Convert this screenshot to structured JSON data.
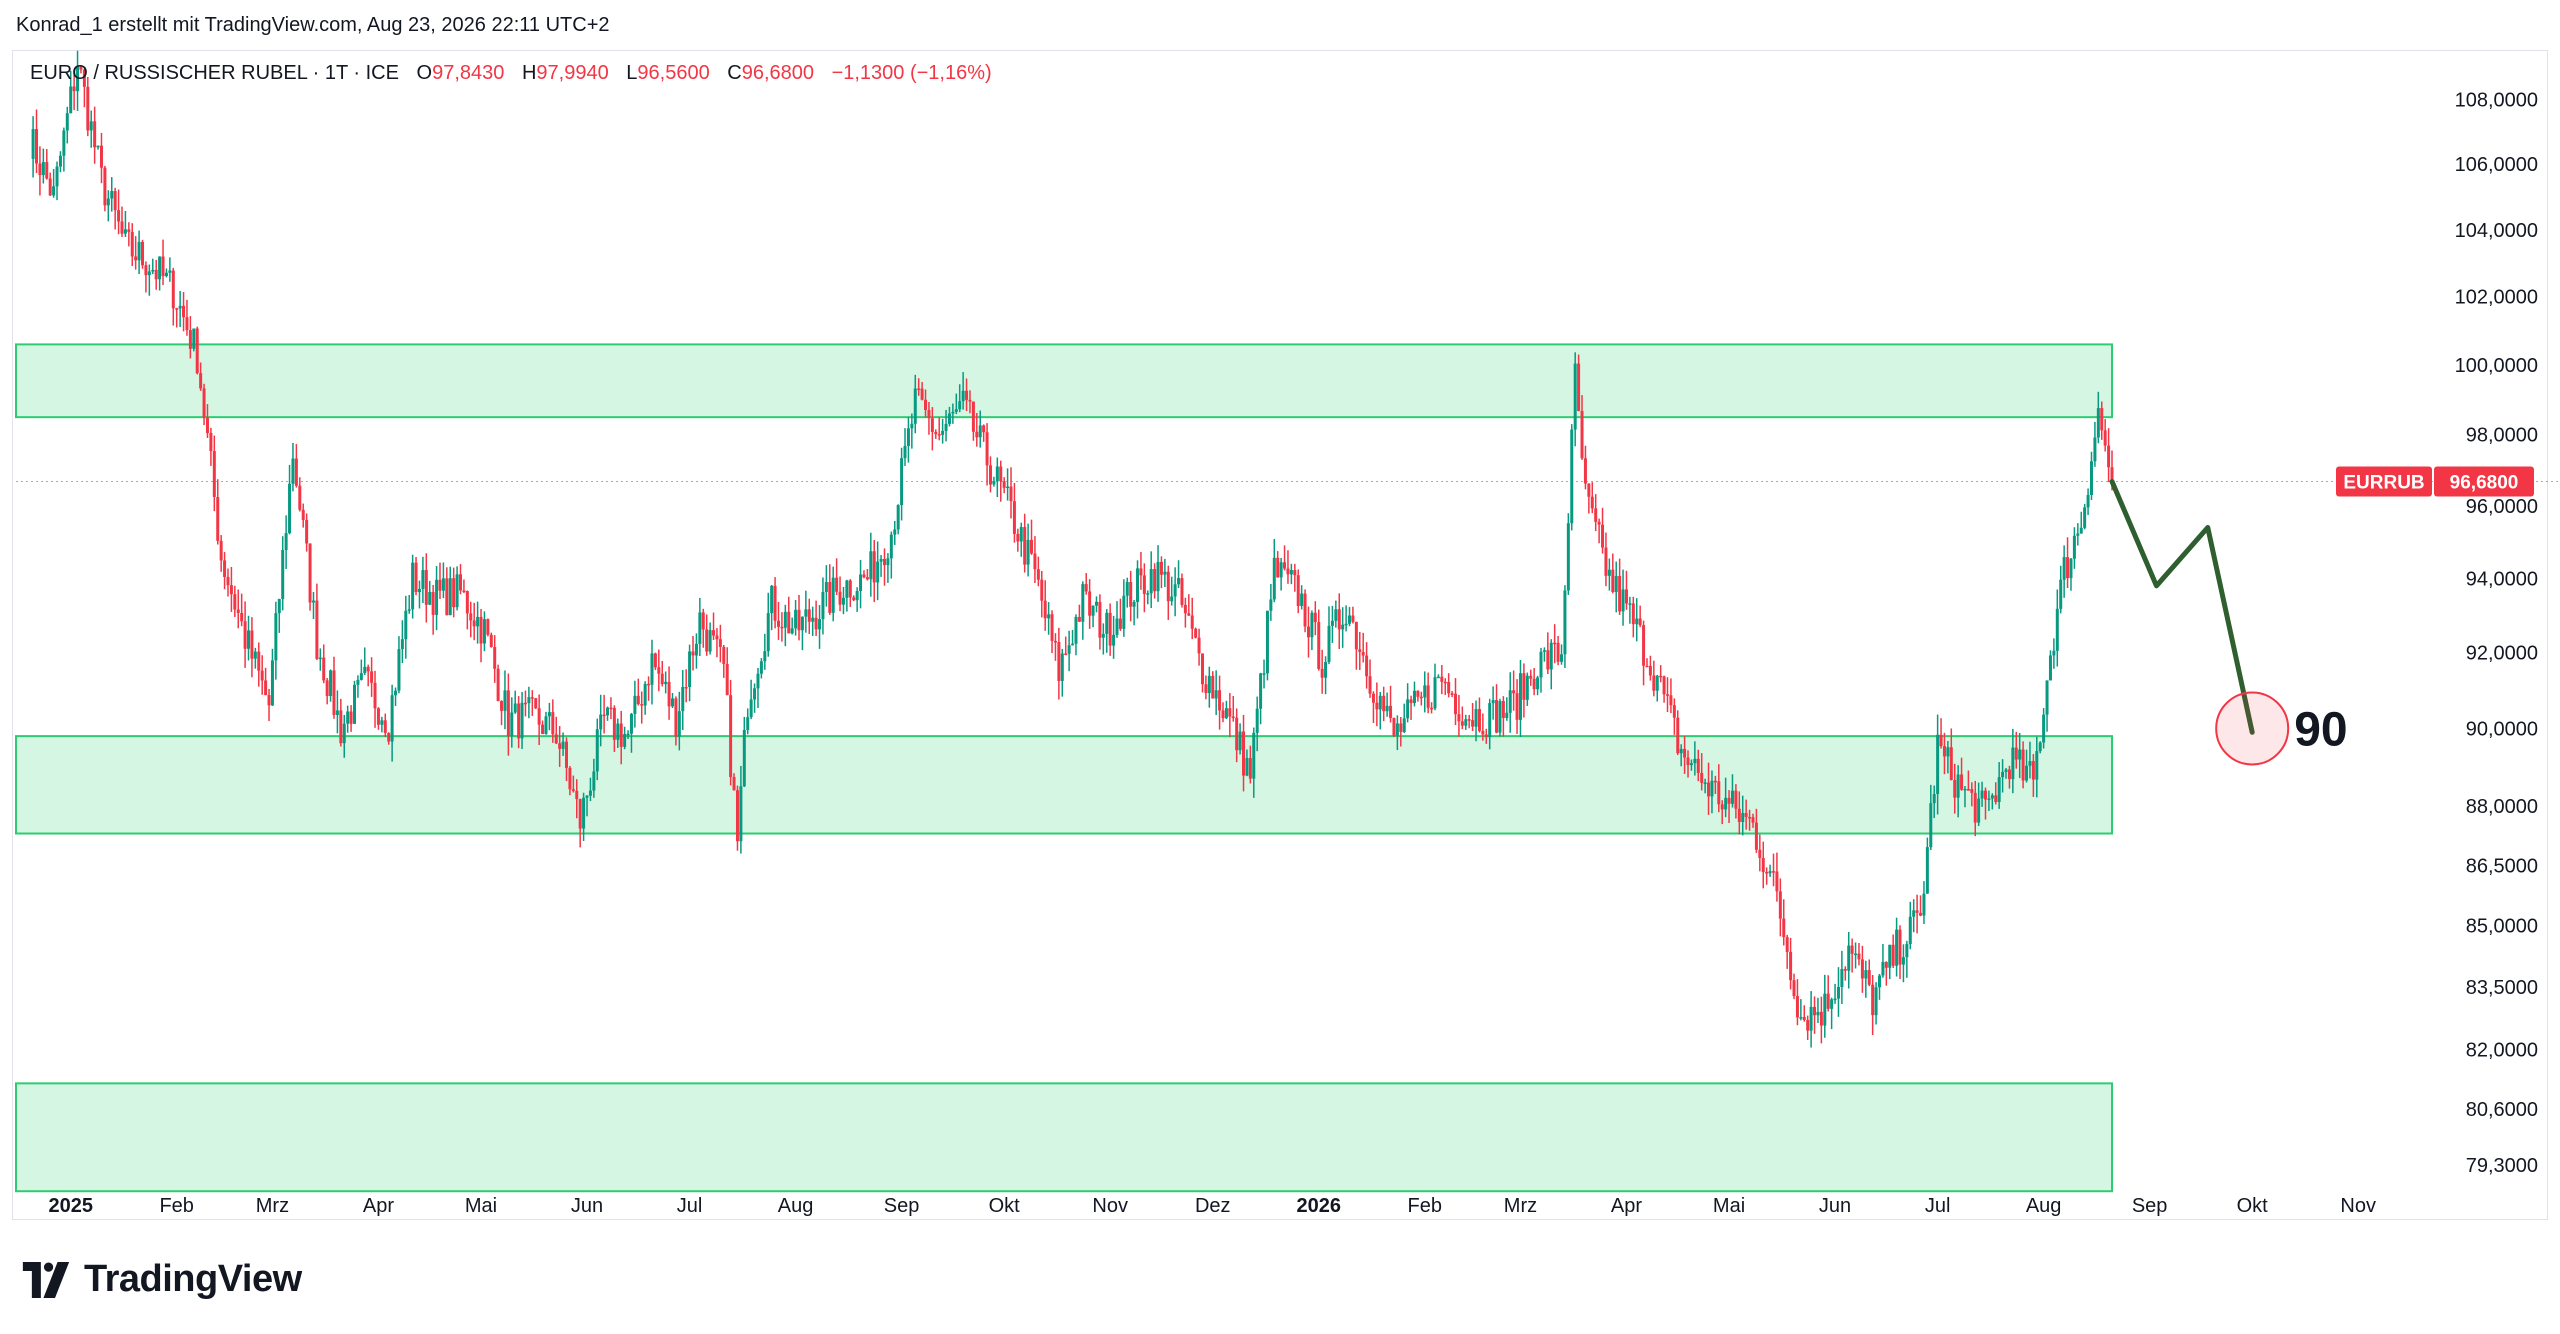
{
  "header": {
    "attribution": "Konrad_1 erstellt mit TradingView.com, Aug 23, 2026 22:11 UTC+2"
  },
  "legend": {
    "symbol": "EURO / RUSSISCHER RUBEL · 1T · ICE",
    "open_label": "O",
    "open": "97,8430",
    "high_label": "H",
    "high": "97,9940",
    "low_label": "L",
    "low": "96,5600",
    "close_label": "C",
    "close": "96,6800",
    "change": "−1,1300 (−1,16%)"
  },
  "price_tag": {
    "ticker": "EURRUB",
    "value": "96,6800"
  },
  "annotation": {
    "label": "90"
  },
  "branding": {
    "name": "TradingView"
  },
  "colors": {
    "up": "#089981",
    "down": "#f23645",
    "zone_fill": "#d4f6e3",
    "zone_border": "#2ecc71",
    "projection": "#2f5e2f"
  },
  "chart_data": {
    "type": "candlestick",
    "title": "EURO / RUSSISCHER RUBEL · 1T · ICE",
    "xlabel": "",
    "ylabel": "",
    "ylim": [
      78.5,
      109.5
    ],
    "y_scale": "log",
    "grid": false,
    "y_ticks": [
      {
        "v": 108.0,
        "label": "108,0000"
      },
      {
        "v": 106.0,
        "label": "106,0000"
      },
      {
        "v": 104.0,
        "label": "104,0000"
      },
      {
        "v": 102.0,
        "label": "102,0000"
      },
      {
        "v": 100.0,
        "label": "100,0000"
      },
      {
        "v": 98.0,
        "label": "98,0000"
      },
      {
        "v": 96.0,
        "label": "96,0000"
      },
      {
        "v": 94.0,
        "label": "94,0000"
      },
      {
        "v": 92.0,
        "label": "92,0000"
      },
      {
        "v": 90.0,
        "label": "90,0000"
      },
      {
        "v": 88.0,
        "label": "88,0000"
      },
      {
        "v": 86.5,
        "label": "86,5000"
      },
      {
        "v": 85.0,
        "label": "85,0000"
      },
      {
        "v": 83.5,
        "label": "83,5000"
      },
      {
        "v": 82.0,
        "label": "82,0000"
      },
      {
        "v": 80.6,
        "label": "80,6000"
      },
      {
        "v": 79.3,
        "label": "79,3000"
      }
    ],
    "x_ticks": [
      {
        "date": "2025-01-01",
        "label": "2025",
        "bold": true
      },
      {
        "date": "2025-02-01",
        "label": "Feb"
      },
      {
        "date": "2025-03-01",
        "label": "Mrz"
      },
      {
        "date": "2025-04-01",
        "label": "Apr"
      },
      {
        "date": "2025-05-01",
        "label": "Mai"
      },
      {
        "date": "2025-06-01",
        "label": "Jun"
      },
      {
        "date": "2025-07-01",
        "label": "Jul"
      },
      {
        "date": "2025-08-01",
        "label": "Aug"
      },
      {
        "date": "2025-09-01",
        "label": "Sep"
      },
      {
        "date": "2025-10-01",
        "label": "Okt"
      },
      {
        "date": "2025-11-01",
        "label": "Nov"
      },
      {
        "date": "2025-12-01",
        "label": "Dez"
      },
      {
        "date": "2026-01-01",
        "label": "2026",
        "bold": true
      },
      {
        "date": "2026-02-01",
        "label": "Feb"
      },
      {
        "date": "2026-03-01",
        "label": "Mrz"
      },
      {
        "date": "2026-04-01",
        "label": "Apr"
      },
      {
        "date": "2026-05-01",
        "label": "Mai"
      },
      {
        "date": "2026-06-01",
        "label": "Jun"
      },
      {
        "date": "2026-07-01",
        "label": "Jul"
      },
      {
        "date": "2026-08-01",
        "label": "Aug"
      },
      {
        "date": "2026-09-01",
        "label": "Sep"
      },
      {
        "date": "2026-10-01",
        "label": "Okt"
      },
      {
        "date": "2026-11-01",
        "label": "Nov"
      }
    ],
    "x_range": [
      "2024-12-16",
      "2026-11-22"
    ],
    "zones": [
      {
        "from": 98.5,
        "to": 100.6
      },
      {
        "from": 87.3,
        "to": 89.8
      },
      {
        "from": 78.7,
        "to": 81.2
      }
    ],
    "zone_end_date": "2026-08-21",
    "last_price": 96.68,
    "closes": [
      {
        "date": "2024-12-20",
        "close": 106.8
      },
      {
        "date": "2024-12-27",
        "close": 105.0
      },
      {
        "date": "2025-01-03",
        "close": 109.2
      },
      {
        "date": "2025-01-10",
        "close": 105.5
      },
      {
        "date": "2025-01-17",
        "close": 103.5
      },
      {
        "date": "2025-01-24",
        "close": 103.0
      },
      {
        "date": "2025-01-31",
        "close": 102.2
      },
      {
        "date": "2025-02-07",
        "close": 100.3
      },
      {
        "date": "2025-02-14",
        "close": 94.6
      },
      {
        "date": "2025-02-21",
        "close": 92.4
      },
      {
        "date": "2025-02-28",
        "close": 90.6
      },
      {
        "date": "2025-03-07",
        "close": 97.5
      },
      {
        "date": "2025-03-14",
        "close": 92.3
      },
      {
        "date": "2025-03-21",
        "close": 90.0
      },
      {
        "date": "2025-03-28",
        "close": 91.2
      },
      {
        "date": "2025-04-04",
        "close": 90.2
      },
      {
        "date": "2025-04-11",
        "close": 94.0
      },
      {
        "date": "2025-04-18",
        "close": 93.5
      },
      {
        "date": "2025-04-25",
        "close": 93.6
      },
      {
        "date": "2025-05-02",
        "close": 92.6
      },
      {
        "date": "2025-05-09",
        "close": 90.2
      },
      {
        "date": "2025-05-16",
        "close": 90.3
      },
      {
        "date": "2025-05-23",
        "close": 89.9
      },
      {
        "date": "2025-05-30",
        "close": 87.6
      },
      {
        "date": "2025-06-06",
        "close": 90.2
      },
      {
        "date": "2025-06-13",
        "close": 89.8
      },
      {
        "date": "2025-06-20",
        "close": 91.8
      },
      {
        "date": "2025-06-27",
        "close": 90.3
      },
      {
        "date": "2025-07-04",
        "close": 92.9
      },
      {
        "date": "2025-07-11",
        "close": 91.5
      },
      {
        "date": "2025-07-15",
        "close": 87.0
      },
      {
        "date": "2025-07-18",
        "close": 90.8
      },
      {
        "date": "2025-07-25",
        "close": 93.3
      },
      {
        "date": "2025-08-01",
        "close": 92.6
      },
      {
        "date": "2025-08-08",
        "close": 93.2
      },
      {
        "date": "2025-08-15",
        "close": 93.8
      },
      {
        "date": "2025-08-22",
        "close": 94.0
      },
      {
        "date": "2025-08-29",
        "close": 95.3
      },
      {
        "date": "2025-09-05",
        "close": 98.9
      },
      {
        "date": "2025-09-12",
        "close": 98.0
      },
      {
        "date": "2025-09-19",
        "close": 98.8
      },
      {
        "date": "2025-09-26",
        "close": 97.3
      },
      {
        "date": "2025-10-03",
        "close": 95.8
      },
      {
        "date": "2025-10-10",
        "close": 94.1
      },
      {
        "date": "2025-10-17",
        "close": 91.5
      },
      {
        "date": "2025-10-24",
        "close": 93.4
      },
      {
        "date": "2025-10-31",
        "close": 92.6
      },
      {
        "date": "2025-11-07",
        "close": 93.6
      },
      {
        "date": "2025-11-14",
        "close": 94.2
      },
      {
        "date": "2025-11-21",
        "close": 93.5
      },
      {
        "date": "2025-11-28",
        "close": 91.6
      },
      {
        "date": "2025-12-05",
        "close": 90.4
      },
      {
        "date": "2025-12-12",
        "close": 88.8
      },
      {
        "date": "2025-12-19",
        "close": 94.2
      },
      {
        "date": "2025-12-26",
        "close": 93.6
      },
      {
        "date": "2026-01-02",
        "close": 91.8
      },
      {
        "date": "2026-01-09",
        "close": 93.3
      },
      {
        "date": "2026-01-16",
        "close": 91.4
      },
      {
        "date": "2026-01-23",
        "close": 89.8
      },
      {
        "date": "2026-01-30",
        "close": 90.6
      },
      {
        "date": "2026-02-06",
        "close": 91.3
      },
      {
        "date": "2026-02-13",
        "close": 90.4
      },
      {
        "date": "2026-02-20",
        "close": 90.3
      },
      {
        "date": "2026-02-27",
        "close": 90.6
      },
      {
        "date": "2026-03-06",
        "close": 91.7
      },
      {
        "date": "2026-03-13",
        "close": 92.0
      },
      {
        "date": "2026-03-17",
        "close": 99.6
      },
      {
        "date": "2026-03-20",
        "close": 96.2
      },
      {
        "date": "2026-03-27",
        "close": 94.0
      },
      {
        "date": "2026-04-03",
        "close": 92.8
      },
      {
        "date": "2026-04-10",
        "close": 91.3
      },
      {
        "date": "2026-04-17",
        "close": 89.4
      },
      {
        "date": "2026-04-24",
        "close": 88.6
      },
      {
        "date": "2026-05-01",
        "close": 88.0
      },
      {
        "date": "2026-05-08",
        "close": 87.5
      },
      {
        "date": "2026-05-15",
        "close": 85.7
      },
      {
        "date": "2026-05-22",
        "close": 82.8
      },
      {
        "date": "2026-05-29",
        "close": 83.0
      },
      {
        "date": "2026-06-05",
        "close": 84.4
      },
      {
        "date": "2026-06-12",
        "close": 83.2
      },
      {
        "date": "2026-06-19",
        "close": 84.4
      },
      {
        "date": "2026-06-26",
        "close": 85.2
      },
      {
        "date": "2026-07-01",
        "close": 89.5
      },
      {
        "date": "2026-07-08",
        "close": 88.4
      },
      {
        "date": "2026-07-15",
        "close": 87.8
      },
      {
        "date": "2026-07-22",
        "close": 89.2
      },
      {
        "date": "2026-07-29",
        "close": 88.6
      },
      {
        "date": "2026-08-03",
        "close": 92.0
      },
      {
        "date": "2026-08-07",
        "close": 94.2
      },
      {
        "date": "2026-08-12",
        "close": 95.6
      },
      {
        "date": "2026-08-17",
        "close": 98.6
      },
      {
        "date": "2026-08-21",
        "close": 96.68
      }
    ],
    "projection": [
      {
        "date": "2026-08-21",
        "value": 96.68
      },
      {
        "date": "2026-09-03",
        "value": 93.8
      },
      {
        "date": "2026-09-18",
        "value": 95.4
      },
      {
        "date": "2026-10-01",
        "value": 89.9
      }
    ],
    "target": {
      "date": "2026-10-01",
      "value": 90.0
    }
  }
}
